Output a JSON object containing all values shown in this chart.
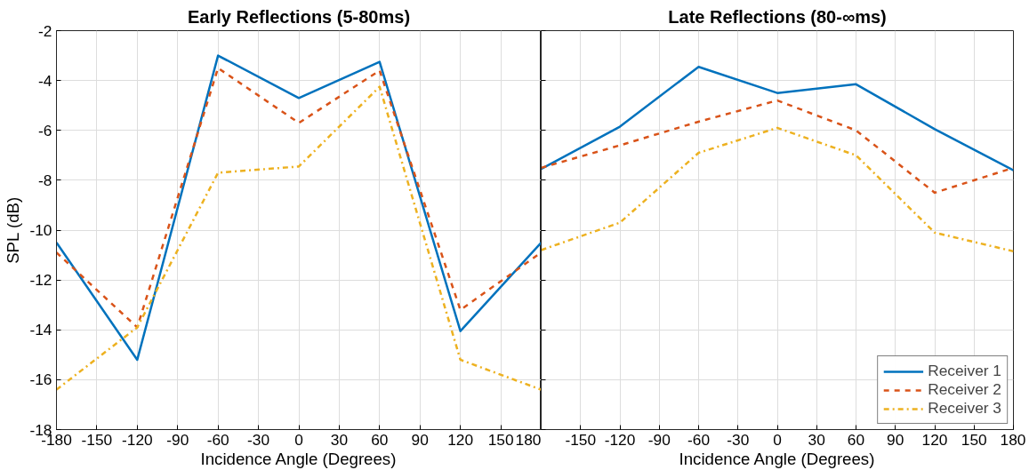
{
  "chart_data": [
    {
      "type": "line",
      "title": "Early Reflections (5-80ms)",
      "xlabel": "Incidence Angle (Degrees)",
      "ylabel": "SPL (dB)",
      "x": [
        -180,
        -120,
        -60,
        0,
        60,
        120,
        180
      ],
      "series": [
        {
          "color": "#0072bd",
          "line_style": "solid",
          "values": [
            -10.5,
            -15.2,
            -3.0,
            -4.7,
            -3.25,
            -14.05,
            -10.5
          ]
        },
        {
          "color": "#d95319",
          "line_style": "dashed",
          "values": [
            -10.9,
            -13.9,
            -3.5,
            -5.7,
            -3.6,
            -13.2,
            -10.9
          ]
        },
        {
          "color": "#edb120",
          "line_style": "dashdot",
          "values": [
            -16.4,
            -13.9,
            -7.7,
            -7.45,
            -4.25,
            -15.2,
            -16.4
          ]
        }
      ],
      "xlim": [
        -180,
        180
      ],
      "xticks": [
        -180,
        -150,
        -120,
        -90,
        -60,
        -30,
        0,
        30,
        60,
        90,
        120,
        150,
        180
      ],
      "ylim": [
        -18,
        -2
      ],
      "yticks": [
        -18,
        -16,
        -14,
        -12,
        -10,
        -8,
        -6,
        -4,
        -2
      ],
      "grid": true
    },
    {
      "type": "line",
      "title": "Late Reflections (80-∞ms)",
      "xlabel": "Incidence Angle (Degrees)",
      "x": [
        -180,
        -120,
        -60,
        0,
        60,
        120,
        180
      ],
      "series": [
        {
          "name": "Receiver 1",
          "color": "#0072bd",
          "line_style": "solid",
          "values": [
            -7.55,
            -5.85,
            -3.45,
            -4.5,
            -4.15,
            -5.95,
            -7.6
          ]
        },
        {
          "name": "Receiver 2",
          "color": "#d95319",
          "line_style": "dashed",
          "values": [
            -7.5,
            -6.6,
            -5.65,
            -4.8,
            -6.0,
            -8.5,
            -7.5
          ]
        },
        {
          "name": "Receiver 3",
          "color": "#edb120",
          "line_style": "dashdot",
          "values": [
            -10.8,
            -9.7,
            -6.9,
            -5.9,
            -7.0,
            -10.1,
            -10.85
          ]
        }
      ],
      "xlim": [
        -180,
        180
      ],
      "xticks": [
        {
          "value": -180,
          "label": null
        },
        -150,
        -120,
        -90,
        -60,
        -30,
        0,
        30,
        60,
        90,
        120,
        150,
        180
      ],
      "ylim": [
        -18,
        -2
      ],
      "yticks": [
        -18,
        -16,
        -14,
        -12,
        -10,
        -8,
        -6,
        -4,
        -2
      ],
      "tick_labels": "x",
      "grid": true,
      "legend": "bottom right"
    }
  ]
}
